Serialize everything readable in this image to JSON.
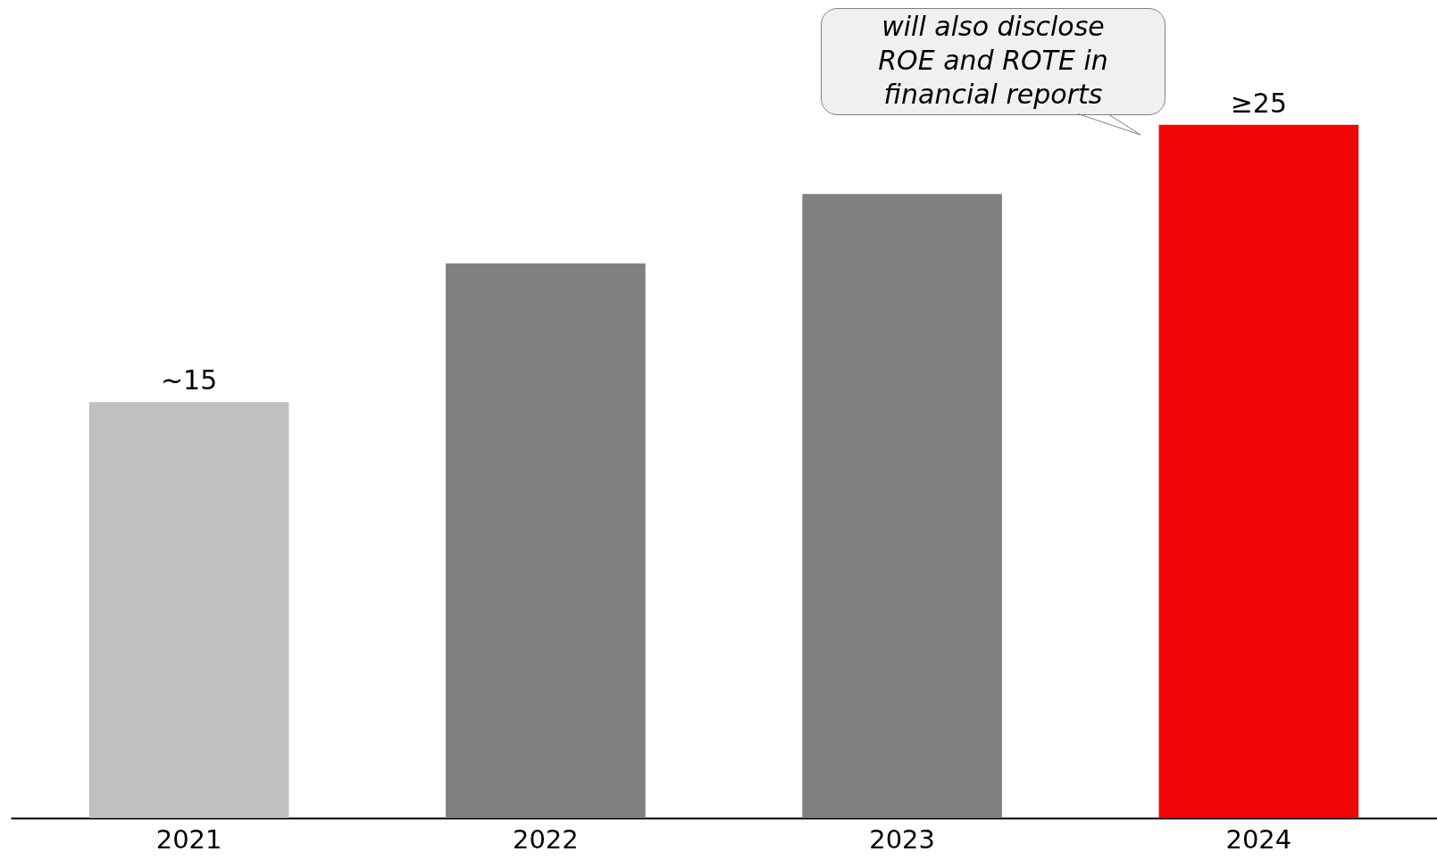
{
  "chart_data": {
    "type": "bar",
    "categories": [
      "2021",
      "2022",
      "2023",
      "2024"
    ],
    "values": [
      15,
      20,
      22.5,
      25
    ],
    "colors": [
      "#c0c0c0",
      "#808080",
      "#808080",
      "#f00505"
    ],
    "value_labels": [
      "~15",
      null,
      null,
      "≥25"
    ],
    "annotations": [
      "will also disclose ROE and ROTE in financial reports"
    ],
    "grid": false
  }
}
